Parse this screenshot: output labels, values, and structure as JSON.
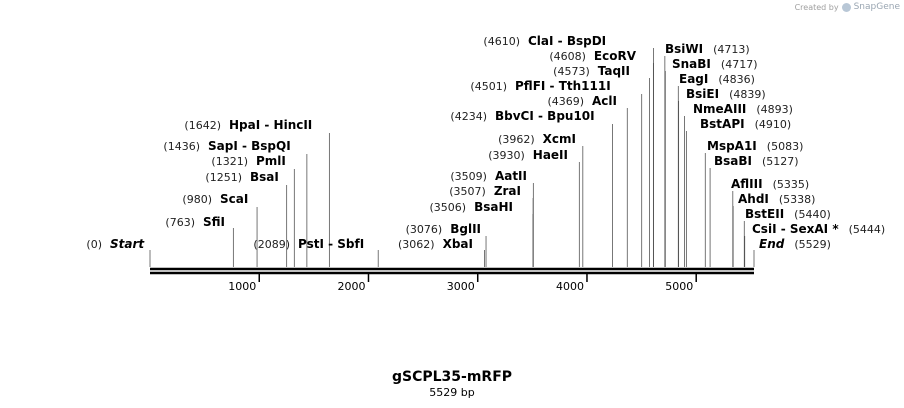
{
  "branding": {
    "created_by": "Created by",
    "product": "SnapGene"
  },
  "plasmid": {
    "name": "gSCPL35-mRFP",
    "length_label": "5529 bp",
    "length": 5529
  },
  "axis": {
    "ticks": [
      1000,
      2000,
      3000,
      4000,
      5000
    ]
  },
  "sites": [
    {
      "pos_label": "(0)",
      "names": [
        "Start"
      ],
      "italic": true,
      "pos": 0
    },
    {
      "pos_label": "(763)",
      "names": [
        "SfiI"
      ],
      "pos": 763
    },
    {
      "pos_label": "(980)",
      "names": [
        "ScaI"
      ],
      "pos": 980
    },
    {
      "pos_label": "(1251)",
      "names": [
        "BsaI"
      ],
      "pos": 1251
    },
    {
      "pos_label": "(1321)",
      "names": [
        "PmlI"
      ],
      "pos": 1321
    },
    {
      "pos_label": "(1436)",
      "names": [
        "SapI",
        "BspQI"
      ],
      "pos": 1436
    },
    {
      "pos_label": "(1642)",
      "names": [
        "HpaI",
        "HincII"
      ],
      "pos": 1642
    },
    {
      "pos_label": "(2089)",
      "names": [
        "PstI",
        "SbfI"
      ],
      "pos": 2089
    },
    {
      "pos_label": "(3062)",
      "names": [
        "XbaI"
      ],
      "pos": 3062
    },
    {
      "pos_label": "(3076)",
      "names": [
        "BglII"
      ],
      "pos": 3076
    },
    {
      "pos_label": "(3506)",
      "names": [
        "BsaHI"
      ],
      "pos": 3506
    },
    {
      "pos_label": "(3507)",
      "names": [
        "ZraI"
      ],
      "pos": 3507
    },
    {
      "pos_label": "(3509)",
      "names": [
        "AatII"
      ],
      "pos": 3509
    },
    {
      "pos_label": "(3930)",
      "names": [
        "HaeII"
      ],
      "pos": 3930
    },
    {
      "pos_label": "(3962)",
      "names": [
        "XcmI"
      ],
      "pos": 3962
    },
    {
      "pos_label": "(4234)",
      "names": [
        "BbvCI",
        "Bpu10I"
      ],
      "pos": 4234
    },
    {
      "pos_label": "(4369)",
      "names": [
        "AclI"
      ],
      "pos": 4369
    },
    {
      "pos_label": "(4501)",
      "names": [
        "PflFI",
        "Tth111I"
      ],
      "pos": 4501
    },
    {
      "pos_label": "(4573)",
      "names": [
        "TaqII"
      ],
      "pos": 4573
    },
    {
      "pos_label": "(4608)",
      "names": [
        "EcoRV"
      ],
      "pos": 4608
    },
    {
      "pos_label": "(4610)",
      "names": [
        "ClaI",
        "BspDI"
      ],
      "pos": 4610
    },
    {
      "pos_label": "(4713)",
      "names": [
        "BsiWI"
      ],
      "pos": 4713
    },
    {
      "pos_label": "(4717)",
      "names": [
        "SnaBI"
      ],
      "pos": 4717
    },
    {
      "pos_label": "(4836)",
      "names": [
        "EagI"
      ],
      "pos": 4836
    },
    {
      "pos_label": "(4839)",
      "names": [
        "BsiEI"
      ],
      "pos": 4839
    },
    {
      "pos_label": "(4893)",
      "names": [
        "NmeAIII"
      ],
      "pos": 4893
    },
    {
      "pos_label": "(4910)",
      "names": [
        "BstAPI"
      ],
      "pos": 4910
    },
    {
      "pos_label": "(5083)",
      "names": [
        "MspA1I"
      ],
      "pos": 5083
    },
    {
      "pos_label": "(5127)",
      "names": [
        "BsaBI"
      ],
      "pos": 5127
    },
    {
      "pos_label": "(5335)",
      "names": [
        "AflIII"
      ],
      "pos": 5335
    },
    {
      "pos_label": "(5338)",
      "names": [
        "AhdI"
      ],
      "pos": 5338
    },
    {
      "pos_label": "(5440)",
      "names": [
        "BstEII"
      ],
      "pos": 5440
    },
    {
      "pos_label": "(5444)",
      "names": [
        "CsiI",
        "SexAI *"
      ],
      "pos": 5444
    },
    {
      "pos_label": "(5529)",
      "names": [
        "End"
      ],
      "italic": true,
      "pos": 5529
    }
  ]
}
